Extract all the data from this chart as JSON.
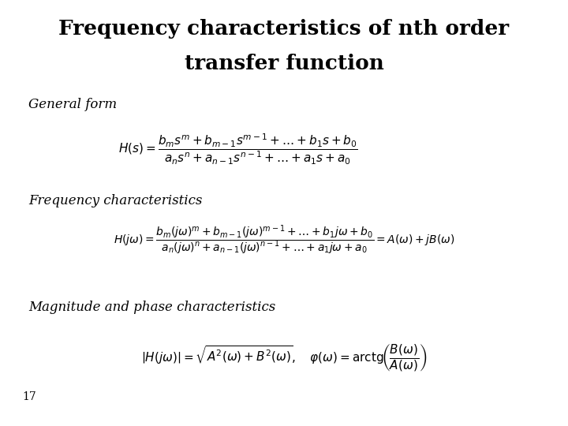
{
  "title_line1": "Frequency characteristics of nth order",
  "title_line2": "transfer function",
  "title_fontsize": 20,
  "bg_color": "#ffffff",
  "text_color": "#000000",
  "label_general_form": "General form",
  "label_freq_char": "Frequency characteristics",
  "label_mag_phase": "Magnitude and phase characteristics",
  "slide_number": "17"
}
